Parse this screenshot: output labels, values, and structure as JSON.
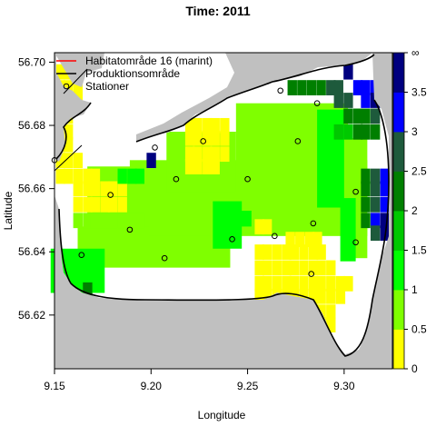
{
  "chart_data": {
    "type": "heatmap",
    "title": "Time: 2011",
    "xlabel": "Longitude",
    "ylabel": "Latitude",
    "xlim": [
      9.15,
      9.325
    ],
    "ylim": [
      56.603,
      56.703
    ],
    "x_ticks": [
      "9.15",
      "9.20",
      "9.25",
      "9.30"
    ],
    "y_ticks": [
      "56.62",
      "56.64",
      "56.66",
      "56.68",
      "56.70"
    ],
    "grid": false,
    "legend_position": "top-left",
    "legend": [
      {
        "label": "Habitatområde 16 (marint)",
        "kind": "line",
        "color": "#ff0000"
      },
      {
        "label": "Produktionsområde",
        "kind": "line",
        "color": "#000000"
      },
      {
        "label": "Stationer",
        "kind": "point",
        "color": "#000000"
      }
    ],
    "colorbar": {
      "labels": [
        "∞",
        "3.5",
        "3",
        "2.5",
        "2",
        "1.5",
        "1",
        "0.5",
        "0"
      ],
      "bins": [
        {
          "from": 0,
          "to": 0.5,
          "color": "#ffff00"
        },
        {
          "from": 0.5,
          "to": 1.0,
          "color": "#7fff00"
        },
        {
          "from": 1.0,
          "to": 1.5,
          "color": "#00ff00"
        },
        {
          "from": 1.5,
          "to": 2.0,
          "color": "#00c800"
        },
        {
          "from": 2.0,
          "to": 2.5,
          "color": "#007f00"
        },
        {
          "from": 2.5,
          "to": 3.0,
          "color": "#1e5a3c"
        },
        {
          "from": 3.0,
          "to": 3.5,
          "color": "#0000ff"
        },
        {
          "from": 3.5,
          "to": "inf",
          "color": "#00007f"
        }
      ]
    },
    "colors": {
      "land": "#c0c0c0",
      "water_nodata": "#ffffff",
      "coast": "#000000"
    },
    "grid_cell": {
      "dx": 0.0046,
      "dy": 0.00465
    },
    "cells": [
      {
        "x": 9.153,
        "y": 56.697,
        "bin": 0
      },
      {
        "x": 9.157,
        "y": 56.697,
        "bin": 0
      },
      {
        "x": 9.162,
        "y": 56.697,
        "bin": 0
      },
      {
        "x": 9.153,
        "y": 56.692,
        "bin": 0
      },
      {
        "x": 9.157,
        "y": 56.692,
        "bin": 0
      },
      {
        "x": 9.162,
        "y": 56.692,
        "bin": 0
      },
      {
        "x": 9.153,
        "y": 56.688,
        "bin": 0
      },
      {
        "x": 9.157,
        "y": 56.688,
        "bin": 0
      },
      {
        "x": 9.162,
        "y": 56.688,
        "bin": 0
      },
      {
        "x": 9.153,
        "y": 56.683,
        "bin": 0
      },
      {
        "x": 9.157,
        "y": 56.683,
        "bin": 0
      },
      {
        "x": 9.153,
        "y": 56.678,
        "bin": 0
      },
      {
        "x": 9.157,
        "y": 56.678,
        "bin": 0
      },
      {
        "x": 9.153,
        "y": 56.674,
        "bin": 0
      },
      {
        "x": 9.157,
        "y": 56.674,
        "bin": 0
      },
      {
        "x": 9.153,
        "y": 56.669,
        "bin": 0
      },
      {
        "x": 9.157,
        "y": 56.669,
        "bin": 0
      },
      {
        "x": 9.162,
        "y": 56.669,
        "bin": 0
      },
      {
        "x": 9.153,
        "y": 56.664,
        "bin": 0
      },
      {
        "x": 9.157,
        "y": 56.664,
        "bin": 0
      },
      {
        "x": 9.162,
        "y": 56.664,
        "bin": 0
      },
      {
        "x": 9.167,
        "y": 56.664,
        "bin": 0
      },
      {
        "x": 9.171,
        "y": 56.664,
        "bin": 0
      },
      {
        "x": 9.162,
        "y": 56.66,
        "bin": 0
      },
      {
        "x": 9.167,
        "y": 56.66,
        "bin": 0
      },
      {
        "x": 9.171,
        "y": 56.66,
        "bin": 0
      },
      {
        "x": 9.176,
        "y": 56.66,
        "bin": 0
      },
      {
        "x": 9.18,
        "y": 56.66,
        "bin": 0
      },
      {
        "x": 9.185,
        "y": 56.66,
        "bin": 0
      },
      {
        "x": 9.162,
        "y": 56.655,
        "bin": 0
      },
      {
        "x": 9.167,
        "y": 56.655,
        "bin": 0
      },
      {
        "x": 9.171,
        "y": 56.655,
        "bin": 0
      },
      {
        "x": 9.176,
        "y": 56.655,
        "bin": 0
      },
      {
        "x": 9.18,
        "y": 56.655,
        "bin": 0
      },
      {
        "x": 9.185,
        "y": 56.655,
        "bin": 0
      },
      {
        "x": 9.22,
        "y": 56.68,
        "bin": 0
      },
      {
        "x": 9.224,
        "y": 56.68,
        "bin": 0
      },
      {
        "x": 9.229,
        "y": 56.68,
        "bin": 0
      },
      {
        "x": 9.233,
        "y": 56.68,
        "bin": 0
      },
      {
        "x": 9.238,
        "y": 56.68,
        "bin": 0
      },
      {
        "x": 9.22,
        "y": 56.676,
        "bin": 0
      },
      {
        "x": 9.224,
        "y": 56.676,
        "bin": 0
      },
      {
        "x": 9.229,
        "y": 56.676,
        "bin": 0
      },
      {
        "x": 9.233,
        "y": 56.676,
        "bin": 0
      },
      {
        "x": 9.238,
        "y": 56.676,
        "bin": 0
      },
      {
        "x": 9.22,
        "y": 56.671,
        "bin": 0
      },
      {
        "x": 9.224,
        "y": 56.671,
        "bin": 0
      },
      {
        "x": 9.229,
        "y": 56.671,
        "bin": 0
      },
      {
        "x": 9.233,
        "y": 56.671,
        "bin": 0
      },
      {
        "x": 9.238,
        "y": 56.671,
        "bin": 0
      },
      {
        "x": 9.22,
        "y": 56.667,
        "bin": 0
      },
      {
        "x": 9.224,
        "y": 56.667,
        "bin": 0
      },
      {
        "x": 9.229,
        "y": 56.667,
        "bin": 0
      },
      {
        "x": 9.233,
        "y": 56.667,
        "bin": 0
      },
      {
        "x": 9.256,
        "y": 56.648,
        "bin": 0
      },
      {
        "x": 9.26,
        "y": 56.648,
        "bin": 0
      },
      {
        "x": 9.272,
        "y": 56.644,
        "bin": 0
      },
      {
        "x": 9.277,
        "y": 56.644,
        "bin": 0
      },
      {
        "x": 9.282,
        "y": 56.644,
        "bin": 0
      },
      {
        "x": 9.286,
        "y": 56.644,
        "bin": 0
      },
      {
        "x": 9.256,
        "y": 56.64,
        "bin": 0
      },
      {
        "x": 9.26,
        "y": 56.64,
        "bin": 0
      },
      {
        "x": 9.265,
        "y": 56.64,
        "bin": 0
      },
      {
        "x": 9.27,
        "y": 56.64,
        "bin": 0
      },
      {
        "x": 9.274,
        "y": 56.64,
        "bin": 0
      },
      {
        "x": 9.279,
        "y": 56.64,
        "bin": 0
      },
      {
        "x": 9.284,
        "y": 56.64,
        "bin": 0
      },
      {
        "x": 9.288,
        "y": 56.64,
        "bin": 0
      },
      {
        "x": 9.256,
        "y": 56.635,
        "bin": 0
      },
      {
        "x": 9.26,
        "y": 56.635,
        "bin": 0
      },
      {
        "x": 9.265,
        "y": 56.635,
        "bin": 0
      },
      {
        "x": 9.27,
        "y": 56.635,
        "bin": 0
      },
      {
        "x": 9.274,
        "y": 56.635,
        "bin": 0
      },
      {
        "x": 9.279,
        "y": 56.635,
        "bin": 0
      },
      {
        "x": 9.284,
        "y": 56.635,
        "bin": 0
      },
      {
        "x": 9.288,
        "y": 56.635,
        "bin": 0
      },
      {
        "x": 9.293,
        "y": 56.635,
        "bin": 0
      },
      {
        "x": 9.256,
        "y": 56.63,
        "bin": 0
      },
      {
        "x": 9.26,
        "y": 56.63,
        "bin": 0
      },
      {
        "x": 9.265,
        "y": 56.63,
        "bin": 0
      },
      {
        "x": 9.27,
        "y": 56.63,
        "bin": 0
      },
      {
        "x": 9.274,
        "y": 56.63,
        "bin": 0
      },
      {
        "x": 9.279,
        "y": 56.63,
        "bin": 0
      },
      {
        "x": 9.284,
        "y": 56.63,
        "bin": 0
      },
      {
        "x": 9.288,
        "y": 56.63,
        "bin": 0
      },
      {
        "x": 9.293,
        "y": 56.63,
        "bin": 0
      },
      {
        "x": 9.298,
        "y": 56.63,
        "bin": 0
      },
      {
        "x": 9.302,
        "y": 56.63,
        "bin": 0
      },
      {
        "x": 9.256,
        "y": 56.626,
        "bin": 0
      },
      {
        "x": 9.26,
        "y": 56.626,
        "bin": 0
      },
      {
        "x": 9.265,
        "y": 56.626,
        "bin": 0
      },
      {
        "x": 9.27,
        "y": 56.626,
        "bin": 0
      },
      {
        "x": 9.274,
        "y": 56.626,
        "bin": 0
      },
      {
        "x": 9.279,
        "y": 56.626,
        "bin": 0
      },
      {
        "x": 9.284,
        "y": 56.626,
        "bin": 0
      },
      {
        "x": 9.288,
        "y": 56.626,
        "bin": 0
      },
      {
        "x": 9.293,
        "y": 56.626,
        "bin": 0
      },
      {
        "x": 9.298,
        "y": 56.626,
        "bin": 0
      },
      {
        "x": 9.27,
        "y": 56.621,
        "bin": 0
      },
      {
        "x": 9.274,
        "y": 56.621,
        "bin": 0
      },
      {
        "x": 9.279,
        "y": 56.621,
        "bin": 0
      },
      {
        "x": 9.284,
        "y": 56.621,
        "bin": 0
      },
      {
        "x": 9.288,
        "y": 56.621,
        "bin": 0
      },
      {
        "x": 9.293,
        "y": 56.621,
        "bin": 0
      },
      {
        "x": 9.284,
        "y": 56.617,
        "bin": 0
      },
      {
        "x": 9.288,
        "y": 56.617,
        "bin": 0
      },
      {
        "x": 9.293,
        "y": 56.617,
        "bin": 0
      },
      {
        "x": 9.288,
        "y": 56.612,
        "bin": 0
      },
      {
        "x": 9.321,
        "y": 56.612,
        "bin": 0
      },
      {
        "x": 9.321,
        "y": 56.607,
        "bin": 0
      }
    ],
    "green_band_cells": [
      {
        "x": 9.162,
        "y": 56.65,
        "bin": 1
      },
      {
        "x": 9.167,
        "y": 56.65,
        "bin": 1
      },
      {
        "x": 9.171,
        "y": 56.65,
        "bin": 1
      },
      {
        "x": 9.176,
        "y": 56.65,
        "bin": 1
      },
      {
        "x": 9.18,
        "y": 56.65,
        "bin": 1
      },
      {
        "x": 9.185,
        "y": 56.65,
        "bin": 1
      },
      {
        "x": 9.19,
        "y": 56.65,
        "bin": 1
      },
      {
        "x": 9.194,
        "y": 56.65,
        "bin": 1
      },
      {
        "x": 9.185,
        "y": 56.664,
        "bin": 2
      },
      {
        "x": 9.19,
        "y": 56.664,
        "bin": 2
      },
      {
        "x": 9.194,
        "y": 56.664,
        "bin": 2
      }
    ],
    "dark_cells": [
      {
        "x": 9.302,
        "y": 56.697,
        "bin": 7
      },
      {
        "x": 9.307,
        "y": 56.692,
        "bin": 6
      },
      {
        "x": 9.311,
        "y": 56.692,
        "bin": 6
      },
      {
        "x": 9.316,
        "y": 56.692,
        "bin": 6
      },
      {
        "x": 9.297,
        "y": 56.688,
        "bin": 5
      },
      {
        "x": 9.302,
        "y": 56.688,
        "bin": 5
      },
      {
        "x": 9.311,
        "y": 56.688,
        "bin": 6
      },
      {
        "x": 9.316,
        "y": 56.688,
        "bin": 7
      },
      {
        "x": 9.273,
        "y": 56.692,
        "bin": 4
      },
      {
        "x": 9.278,
        "y": 56.692,
        "bin": 4
      },
      {
        "x": 9.283,
        "y": 56.692,
        "bin": 4
      },
      {
        "x": 9.288,
        "y": 56.692,
        "bin": 4
      },
      {
        "x": 9.293,
        "y": 56.692,
        "bin": 5
      },
      {
        "x": 9.297,
        "y": 56.692,
        "bin": 5
      },
      {
        "x": 9.302,
        "y": 56.683,
        "bin": 4
      },
      {
        "x": 9.307,
        "y": 56.683,
        "bin": 4
      },
      {
        "x": 9.311,
        "y": 56.683,
        "bin": 4
      },
      {
        "x": 9.316,
        "y": 56.683,
        "bin": 5
      },
      {
        "x": 9.297,
        "y": 56.678,
        "bin": 3
      },
      {
        "x": 9.302,
        "y": 56.678,
        "bin": 3
      },
      {
        "x": 9.307,
        "y": 56.678,
        "bin": 4
      },
      {
        "x": 9.311,
        "y": 56.678,
        "bin": 4
      },
      {
        "x": 9.316,
        "y": 56.678,
        "bin": 4
      },
      {
        "x": 9.2,
        "y": 56.669,
        "bin": 7
      },
      {
        "x": 9.311,
        "y": 56.664,
        "bin": 4
      },
      {
        "x": 9.316,
        "y": 56.664,
        "bin": 5
      },
      {
        "x": 9.321,
        "y": 56.664,
        "bin": 6
      },
      {
        "x": 9.311,
        "y": 56.66,
        "bin": 4
      },
      {
        "x": 9.316,
        "y": 56.66,
        "bin": 5
      },
      {
        "x": 9.321,
        "y": 56.66,
        "bin": 6
      },
      {
        "x": 9.311,
        "y": 56.655,
        "bin": 4
      },
      {
        "x": 9.316,
        "y": 56.655,
        "bin": 5
      },
      {
        "x": 9.321,
        "y": 56.655,
        "bin": 6
      },
      {
        "x": 9.311,
        "y": 56.65,
        "bin": 4
      },
      {
        "x": 9.316,
        "y": 56.65,
        "bin": 6
      },
      {
        "x": 9.321,
        "y": 56.65,
        "bin": 7
      },
      {
        "x": 9.316,
        "y": 56.646,
        "bin": 5
      },
      {
        "x": 9.321,
        "y": 56.646,
        "bin": 7
      },
      {
        "x": 9.167,
        "y": 56.628,
        "bin": 4
      }
    ],
    "stations": [
      {
        "x": 9.15,
        "y": 56.669
      },
      {
        "x": 9.267,
        "y": 56.691
      },
      {
        "x": 9.286,
        "y": 56.687
      },
      {
        "x": 9.202,
        "y": 56.673
      },
      {
        "x": 9.227,
        "y": 56.675
      },
      {
        "x": 9.276,
        "y": 56.675
      },
      {
        "x": 9.213,
        "y": 56.663
      },
      {
        "x": 9.25,
        "y": 56.663
      },
      {
        "x": 9.179,
        "y": 56.658
      },
      {
        "x": 9.306,
        "y": 56.659
      },
      {
        "x": 9.189,
        "y": 56.647
      },
      {
        "x": 9.284,
        "y": 56.649
      },
      {
        "x": 9.242,
        "y": 56.644
      },
      {
        "x": 9.264,
        "y": 56.645
      },
      {
        "x": 9.306,
        "y": 56.643
      },
      {
        "x": 9.164,
        "y": 56.639
      },
      {
        "x": 9.207,
        "y": 56.638
      },
      {
        "x": 9.283,
        "y": 56.633
      }
    ]
  }
}
